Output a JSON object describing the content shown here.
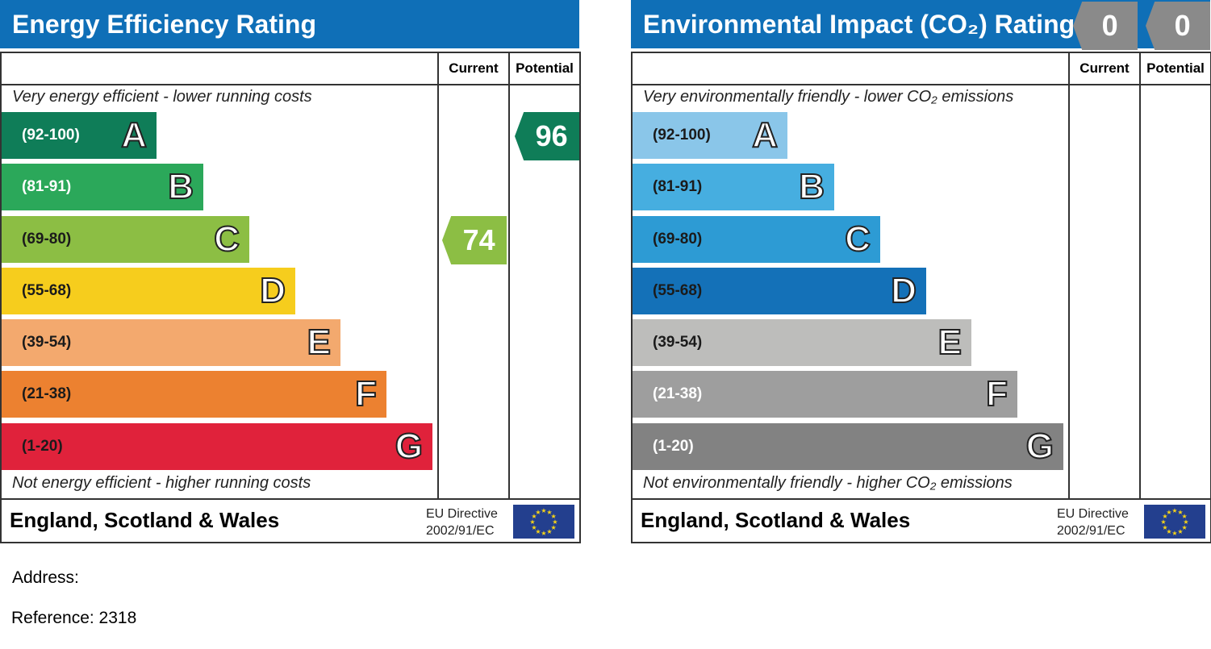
{
  "charts": [
    {
      "title": "Energy Efficiency Rating",
      "col_current": "Current",
      "col_potential": "Potential",
      "top_note": "Very energy efficient - lower running costs",
      "bottom_note": "Not energy efficient - higher running costs",
      "footer": "England, Scotland & Wales",
      "eu_line1": "EU Directive",
      "eu_line2": "2002/91/EC",
      "bands": [
        {
          "range": "(92-100)",
          "letter": "A",
          "color": "#0f7d58",
          "text_color": "#ffffff"
        },
        {
          "range": "(81-91)",
          "letter": "B",
          "color": "#2ba85a",
          "text_color": "#ffffff"
        },
        {
          "range": "(69-80)",
          "letter": "C",
          "color": "#8cbe44",
          "text_color": "#1b1b1b"
        },
        {
          "range": "(55-68)",
          "letter": "D",
          "color": "#f6cd1d",
          "text_color": "#1b1b1b"
        },
        {
          "range": "(39-54)",
          "letter": "E",
          "color": "#f3a96e",
          "text_color": "#1b1b1b"
        },
        {
          "range": "(21-38)",
          "letter": "F",
          "color": "#ec8130",
          "text_color": "#1b1b1b"
        },
        {
          "range": "(1-20)",
          "letter": "G",
          "color": "#e0223b",
          "text_color": "#1b1b1b"
        }
      ],
      "current": {
        "value": "74",
        "band": "C",
        "color": "#8cbe44"
      },
      "potential": {
        "value": "96",
        "band": "A",
        "color": "#0f7d58"
      }
    },
    {
      "title": "Environmental Impact (CO₂) Rating",
      "col_current": "Current",
      "col_potential": "Potential",
      "top_note": "Very environmentally friendly - lower CO₂ emissions",
      "bottom_note": "Not environmentally friendly - higher CO₂ emissions",
      "footer": "England, Scotland & Wales",
      "eu_line1": "EU Directive",
      "eu_line2": "2002/91/EC",
      "bands": [
        {
          "range": "(92-100)",
          "letter": "A",
          "color": "#8ac6e9",
          "text_color": "#1b1b1b"
        },
        {
          "range": "(81-91)",
          "letter": "B",
          "color": "#46aee0",
          "text_color": "#1b1b1b"
        },
        {
          "range": "(69-80)",
          "letter": "C",
          "color": "#2d9bd4",
          "text_color": "#1b1b1b"
        },
        {
          "range": "(55-68)",
          "letter": "D",
          "color": "#1471b8",
          "text_color": "#1b1b1b"
        },
        {
          "range": "(39-54)",
          "letter": "E",
          "color": "#bdbdbb",
          "text_color": "#1b1b1b"
        },
        {
          "range": "(21-38)",
          "letter": "F",
          "color": "#9e9e9e",
          "text_color": "#ffffff"
        },
        {
          "range": "(1-20)",
          "letter": "G",
          "color": "#828282",
          "text_color": "#ffffff"
        }
      ],
      "current": {
        "value": "0",
        "color": "#8a8a8a"
      },
      "potential": {
        "value": "0",
        "color": "#8a8a8a"
      }
    }
  ],
  "address_label": "Address:",
  "reference_label": "Reference: 2318",
  "chart_data": [
    {
      "type": "bar",
      "title": "Energy Efficiency Rating",
      "categories": [
        "A",
        "B",
        "C",
        "D",
        "E",
        "F",
        "G"
      ],
      "ranges": [
        "(92-100)",
        "(81-91)",
        "(69-80)",
        "(55-68)",
        "(39-54)",
        "(21-38)",
        "(1-20)"
      ],
      "current": 74,
      "potential": 96
    },
    {
      "type": "bar",
      "title": "Environmental Impact (CO₂) Rating",
      "categories": [
        "A",
        "B",
        "C",
        "D",
        "E",
        "F",
        "G"
      ],
      "ranges": [
        "(92-100)",
        "(81-91)",
        "(69-80)",
        "(55-68)",
        "(39-54)",
        "(21-38)",
        "(1-20)"
      ],
      "current": 0,
      "potential": 0
    }
  ]
}
